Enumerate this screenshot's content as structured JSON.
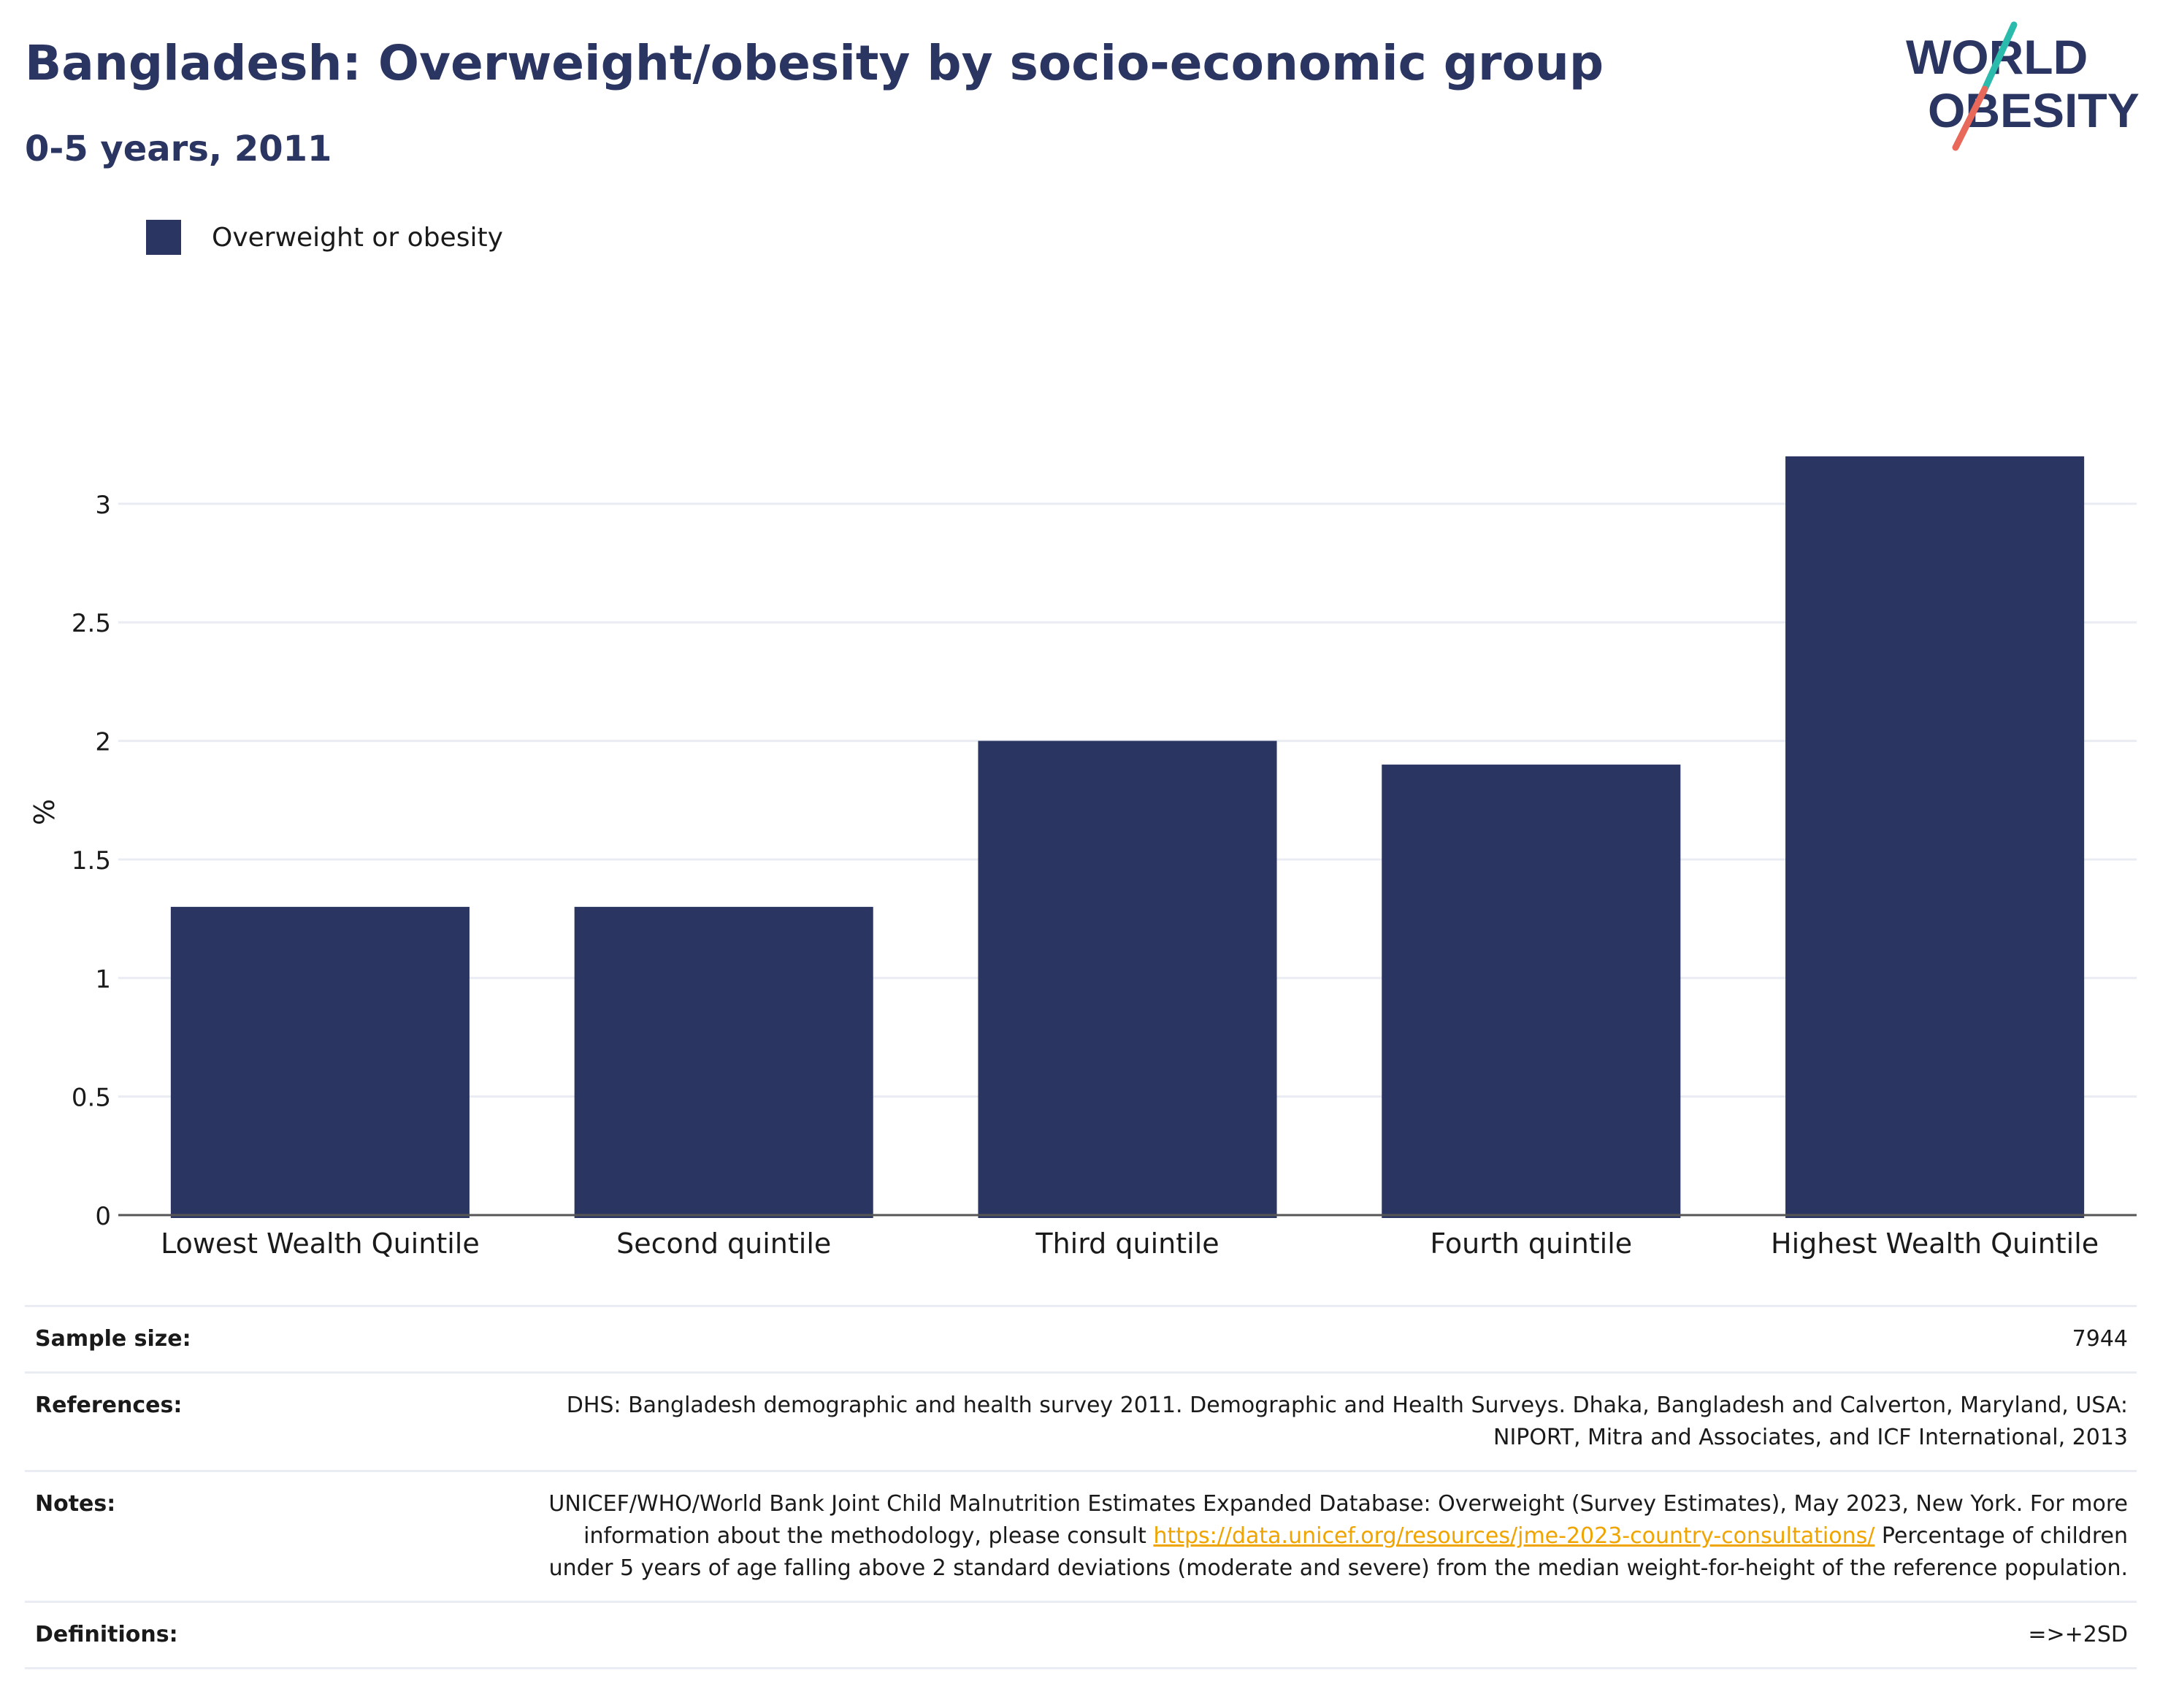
{
  "header": {
    "title": "Bangladesh: Overweight/obesity by socio-economic group",
    "subtitle": "0-5 years, 2011"
  },
  "logo": {
    "line1": "WORLD",
    "line2": "OBESITY",
    "colors": {
      "text": "#2a3561",
      "slash_top": "#2bbbad",
      "slash_bottom": "#e8685a"
    }
  },
  "legend": {
    "label": "Overweight or obesity",
    "color": "#2a3561"
  },
  "chart_data": {
    "type": "bar",
    "categories": [
      "Lowest Wealth Quintile",
      "Second quintile",
      "Third quintile",
      "Fourth quintile",
      "Highest Wealth Quintile"
    ],
    "series": [
      {
        "name": "Overweight or obesity",
        "values": [
          1.3,
          1.3,
          2.0,
          1.9,
          3.2
        ],
        "color": "#2a3561"
      }
    ],
    "ylabel": "%",
    "ylim": [
      0,
      3.4
    ],
    "yticks": [
      0,
      0.5,
      1,
      1.5,
      2,
      2.5,
      3
    ],
    "ytick_labels": [
      "0",
      "0.5",
      "1",
      "1.5",
      "2",
      "2.5",
      "3"
    ],
    "grid": true,
    "legend_position": "top-left"
  },
  "info": {
    "sample_size": {
      "label": "Sample size:",
      "value": "7944"
    },
    "references": {
      "label": "References:",
      "value": "DHS: Bangladesh demographic and health survey 2011. Demographic and Health Surveys. Dhaka, Bangladesh and Calverton, Maryland, USA: NIPORT, Mitra and Associates, and ICF International, 2013"
    },
    "notes": {
      "label": "Notes:",
      "text_before": "UNICEF/WHO/World Bank Joint Child Malnutrition Estimates Expanded Database: Overweight (Survey Estimates), May 2023, New York. For more information about the methodology, please consult ",
      "link": "https://data.unicef.org/resources/jme-2023-country-consultations/",
      "text_after": " Percentage of children under 5 years of age falling above 2 standard deviations (moderate and severe) from the median weight-for-height of the reference population."
    },
    "definitions": {
      "label": "Definitions:",
      "value": "=>+2SD"
    }
  }
}
